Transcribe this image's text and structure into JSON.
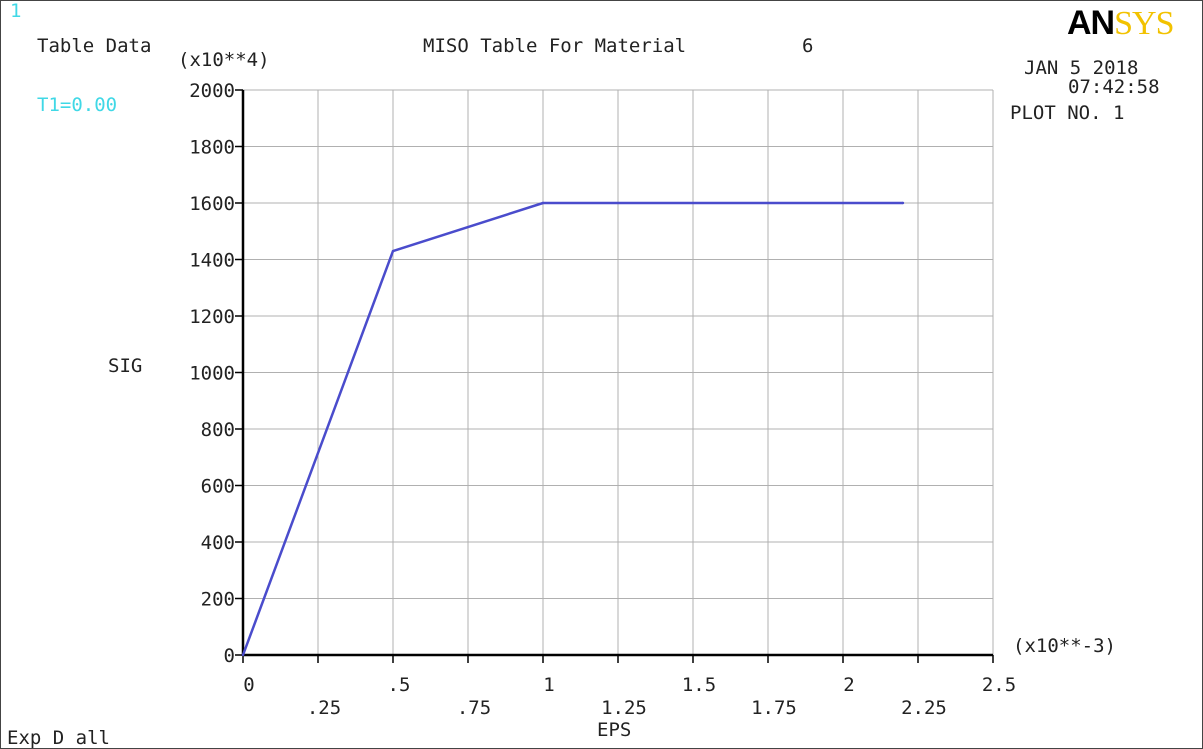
{
  "window_number": "1",
  "header": {
    "left_label": "Table Data",
    "temperature": "T1=0.00",
    "title": "MISO Table For Material",
    "material_number": "6",
    "date": "JAN  5 2018",
    "time": "07:42:58",
    "plot_no": "PLOT NO.   1"
  },
  "logo": {
    "part1": "AN",
    "part2": "SYS"
  },
  "footer": {
    "expand_label": "Exp D all"
  },
  "colors": {
    "curve": "#4a4ccc",
    "grid": "#b0b0b0",
    "axis": "#000000",
    "accent": "#40d8e6"
  },
  "chart_data": {
    "type": "line",
    "title": "MISO Table For Material     6",
    "xlabel": "EPS",
    "ylabel": "SIG",
    "x_multiplier": "(x10**-3)",
    "y_multiplier": "(x10**4)",
    "xlim": [
      0,
      2.5
    ],
    "ylim": [
      0,
      2000
    ],
    "x_ticks_upper": [
      "0",
      ".5",
      "1",
      "1.5",
      "2",
      "2.5"
    ],
    "x_ticks_lower": [
      ".25",
      ".75",
      "1.25",
      "1.75",
      "2.25"
    ],
    "x_tick_values_upper": [
      0,
      0.5,
      1,
      1.5,
      2,
      2.5
    ],
    "x_tick_values_lower": [
      0.25,
      0.75,
      1.25,
      1.75,
      2.25
    ],
    "y_ticks": [
      "0",
      "200",
      "400",
      "600",
      "800",
      "1000",
      "1200",
      "1400",
      "1600",
      "1800",
      "2000"
    ],
    "y_tick_values": [
      0,
      200,
      400,
      600,
      800,
      1000,
      1200,
      1400,
      1600,
      1800,
      2000
    ],
    "grid": true,
    "series": [
      {
        "x": [
          0,
          0.5,
          1.0,
          2.2
        ],
        "y": [
          0,
          1430,
          1600,
          1600
        ]
      }
    ]
  }
}
